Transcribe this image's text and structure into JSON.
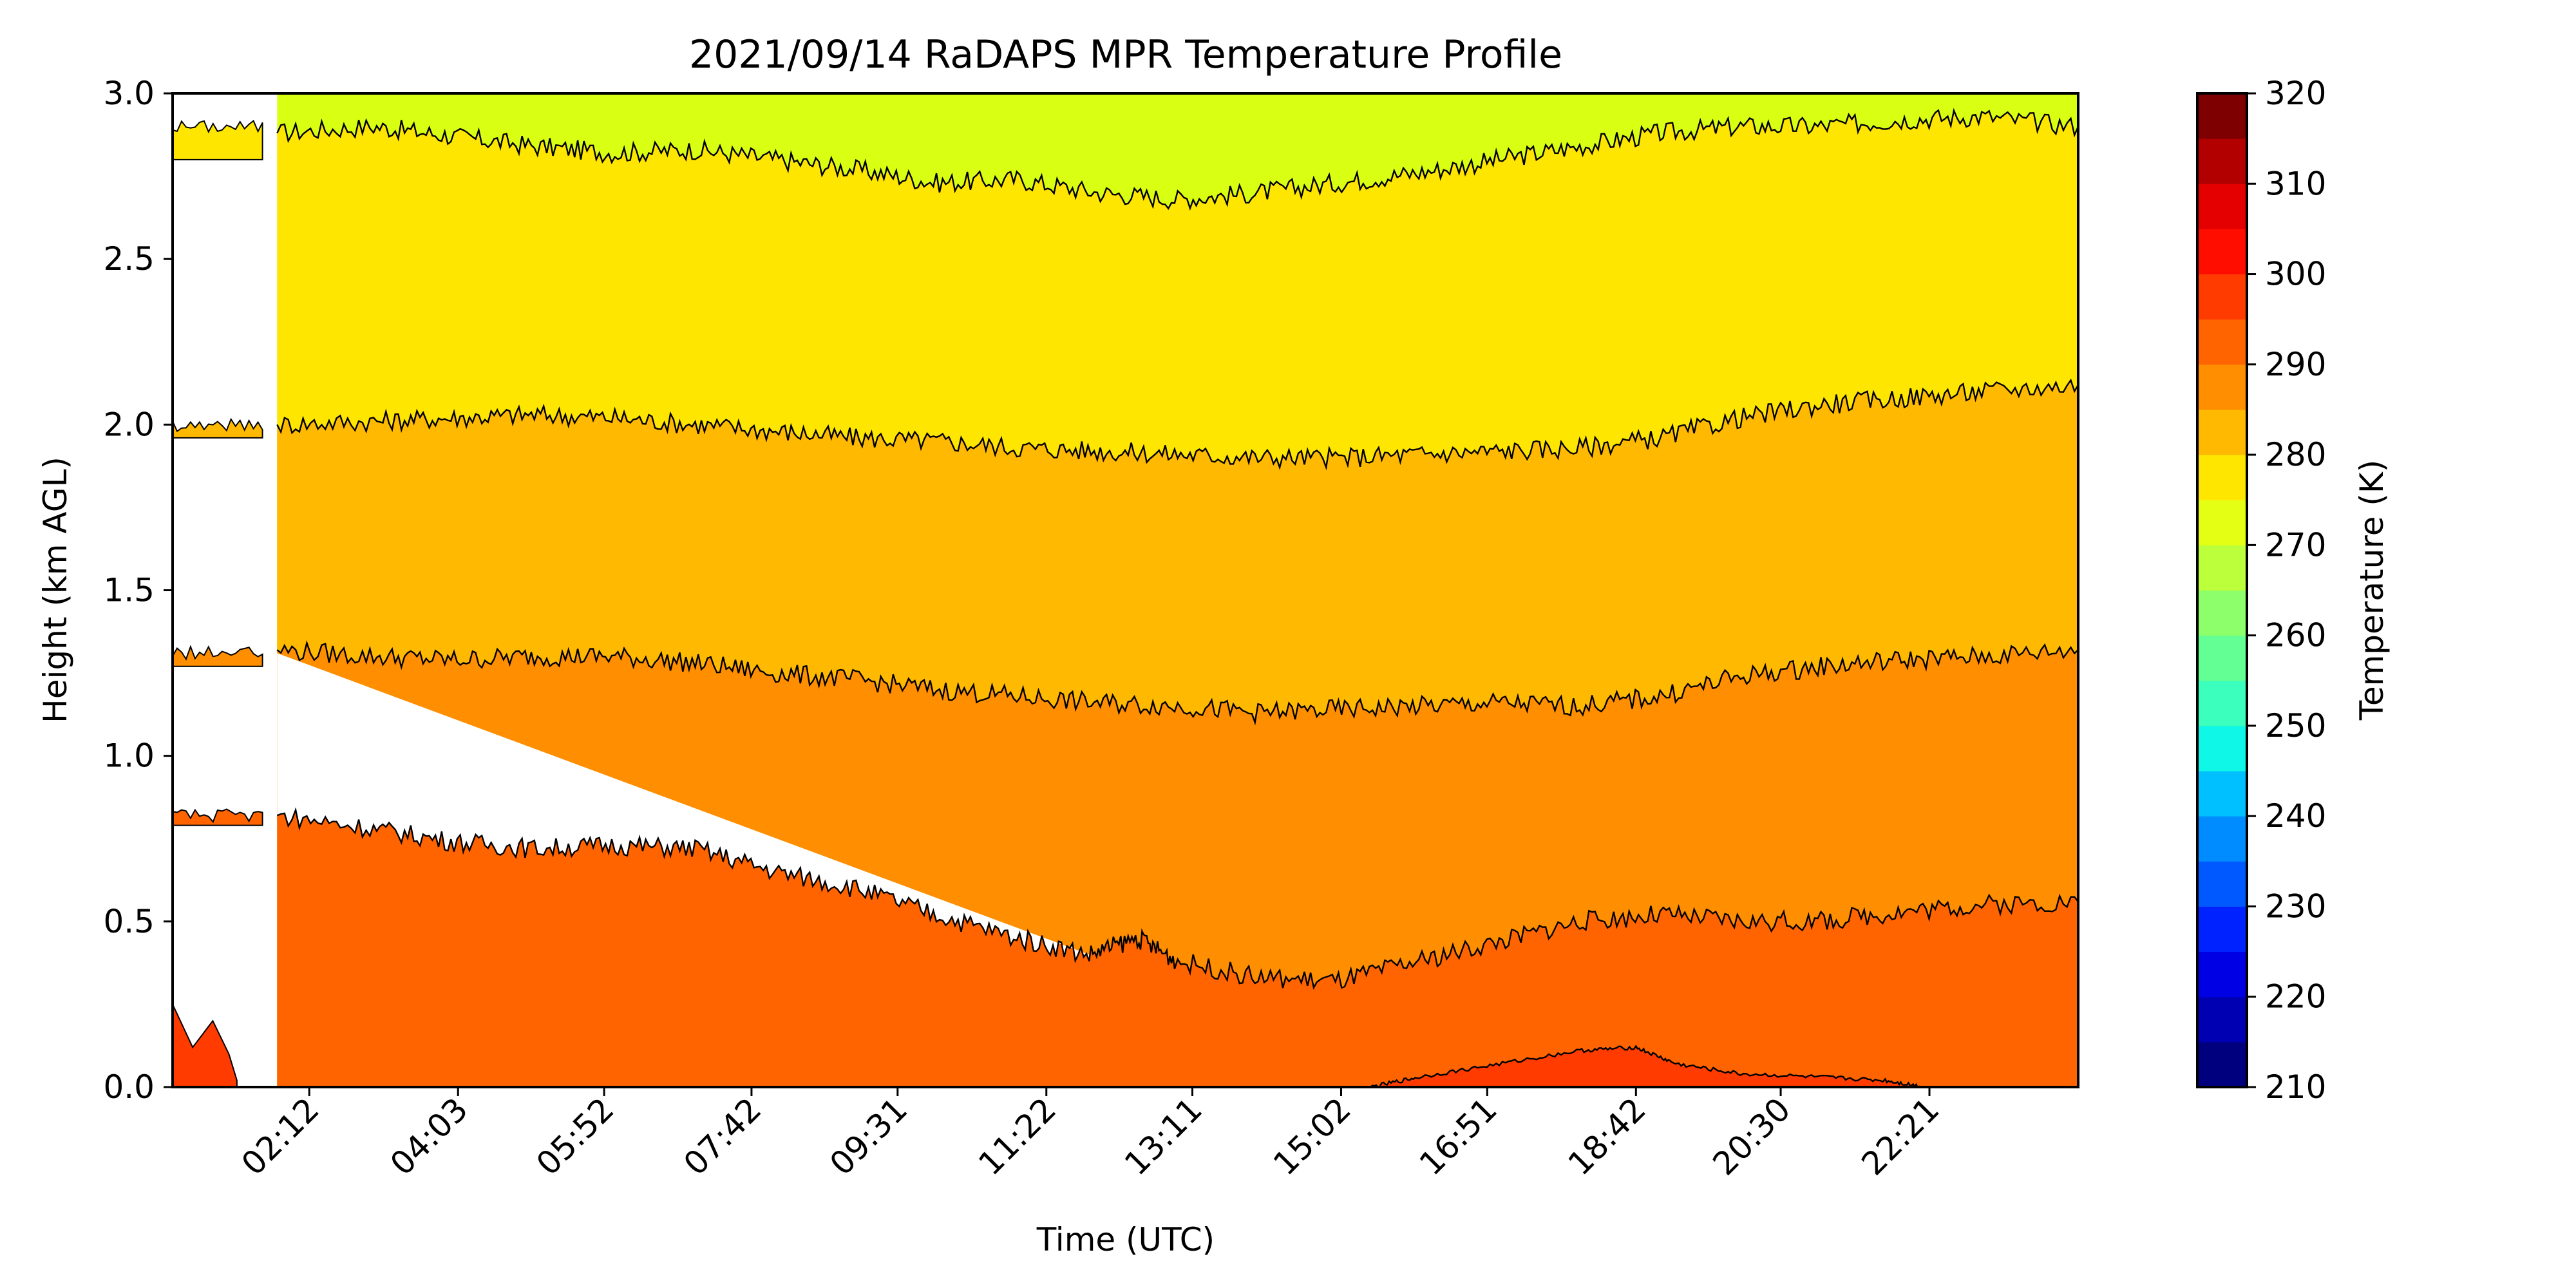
{
  "chart_data": {
    "type": "contourf",
    "title": "2021/09/14 RaDAPS MPR Temperature Profile",
    "xlabel": "Time (UTC)",
    "ylabel": "Height (km AGL)",
    "x_ticks": [
      "02:12",
      "04:03",
      "05:52",
      "07:42",
      "09:31",
      "11:22",
      "13:11",
      "15:02",
      "16:51",
      "18:42",
      "20:30",
      "22:21"
    ],
    "x_tick_hours": [
      2.2,
      4.05,
      5.867,
      7.7,
      9.517,
      11.367,
      13.183,
      15.033,
      16.85,
      18.7,
      20.5,
      22.35
    ],
    "xlim_hours": [
      0.5,
      24.2
    ],
    "data_start_hours": 1.8,
    "ylim": [
      0,
      3
    ],
    "y_ticks": [
      "0.0",
      "0.5",
      "1.0",
      "1.5",
      "2.0",
      "2.5",
      "3.0"
    ],
    "y_tick_values": [
      0,
      0.5,
      1.0,
      1.5,
      2.0,
      2.5,
      3.0
    ],
    "colorbar": {
      "label": "Temperature (K)",
      "range": [
        210,
        320
      ],
      "step": 5,
      "tick_labels": [
        "210",
        "220",
        "230",
        "240",
        "250",
        "260",
        "270",
        "280",
        "290",
        "300",
        "310",
        "320"
      ],
      "tick_values": [
        210,
        220,
        230,
        240,
        250,
        260,
        270,
        280,
        290,
        300,
        310,
        320
      ],
      "colors": [
        "#00007f",
        "#0000b2",
        "#0000e4",
        "#0022ff",
        "#0058ff",
        "#008cff",
        "#00c0ff",
        "#0ff8e7",
        "#3bffbc",
        "#63ff94",
        "#8cff6a",
        "#bcff3b",
        "#e4ff13",
        "#ffe600",
        "#ffb900",
        "#ff8e00",
        "#ff6400",
        "#ff3b00",
        "#ff0e00",
        "#e40000",
        "#b20000",
        "#7f0000"
      ]
    },
    "bands_K": [
      {
        "range": [
          295,
          300
        ],
        "color": "#ff6400"
      },
      {
        "range": [
          290,
          295
        ],
        "color": "#ff8e00"
      },
      {
        "range": [
          285,
          290
        ],
        "color": "#ffb900"
      },
      {
        "range": [
          280,
          285
        ],
        "color": "#ffe600"
      },
      {
        "range": [
          275,
          280
        ],
        "color": "#d9ff13"
      },
      {
        "range": [
          300,
          305
        ],
        "color": "#ff3b00"
      }
    ],
    "contour_levels_km": [
      {
        "isotherm_K": 280,
        "points": [
          [
            1.8,
            2.88
          ],
          [
            3,
            2.9
          ],
          [
            4,
            2.87
          ],
          [
            5,
            2.84
          ],
          [
            6,
            2.82
          ],
          [
            7,
            2.83
          ],
          [
            8,
            2.8
          ],
          [
            9,
            2.77
          ],
          [
            10,
            2.73
          ],
          [
            11,
            2.74
          ],
          [
            12,
            2.7
          ],
          [
            13,
            2.68
          ],
          [
            14,
            2.7
          ],
          [
            15,
            2.73
          ],
          [
            16,
            2.76
          ],
          [
            17,
            2.8
          ],
          [
            18,
            2.84
          ],
          [
            19,
            2.88
          ],
          [
            20,
            2.9
          ],
          [
            21,
            2.9
          ],
          [
            22,
            2.92
          ],
          [
            23,
            2.93
          ],
          [
            24.2,
            2.9
          ]
        ]
      },
      {
        "isotherm_K": 285,
        "points": [
          [
            1.8,
            2.0
          ],
          [
            3,
            2.01
          ],
          [
            4,
            2.02
          ],
          [
            5,
            2.03
          ],
          [
            6,
            2.02
          ],
          [
            7,
            2.0
          ],
          [
            8,
            1.98
          ],
          [
            9,
            1.96
          ],
          [
            10,
            1.95
          ],
          [
            11,
            1.93
          ],
          [
            12,
            1.92
          ],
          [
            13,
            1.91
          ],
          [
            14,
            1.9
          ],
          [
            15,
            1.9
          ],
          [
            16,
            1.91
          ],
          [
            17,
            1.92
          ],
          [
            18,
            1.93
          ],
          [
            19,
            1.96
          ],
          [
            20,
            2.02
          ],
          [
            21,
            2.06
          ],
          [
            22,
            2.08
          ],
          [
            23,
            2.1
          ],
          [
            24.2,
            2.12
          ]
        ]
      },
      {
        "isotherm_K": 290,
        "points": [
          [
            1.8,
            1.32
          ],
          [
            3,
            1.3
          ],
          [
            4,
            1.29
          ],
          [
            5,
            1.3
          ],
          [
            6,
            1.3
          ],
          [
            7,
            1.28
          ],
          [
            8,
            1.25
          ],
          [
            9,
            1.23
          ],
          [
            10,
            1.2
          ],
          [
            11,
            1.18
          ],
          [
            12,
            1.16
          ],
          [
            13,
            1.15
          ],
          [
            14,
            1.13
          ],
          [
            15,
            1.14
          ],
          [
            16,
            1.15
          ],
          [
            17,
            1.16
          ],
          [
            18,
            1.15
          ],
          [
            19,
            1.18
          ],
          [
            20,
            1.24
          ],
          [
            21,
            1.27
          ],
          [
            22,
            1.29
          ],
          [
            23,
            1.3
          ],
          [
            24.2,
            1.32
          ]
        ]
      },
      {
        "isotherm_K": 295,
        "points": [
          [
            1.8,
            0.82
          ],
          [
            3,
            0.78
          ],
          [
            4,
            0.74
          ],
          [
            5,
            0.72
          ],
          [
            6,
            0.73
          ],
          [
            7,
            0.72
          ],
          [
            8,
            0.65
          ],
          [
            9,
            0.6
          ],
          [
            10,
            0.52
          ],
          [
            11,
            0.45
          ],
          [
            11.9,
            0.4
          ],
          [
            12.5,
            0.45
          ],
          [
            13,
            0.38
          ],
          [
            14,
            0.33
          ],
          [
            15,
            0.32
          ],
          [
            16,
            0.38
          ],
          [
            17,
            0.44
          ],
          [
            18,
            0.5
          ],
          [
            19,
            0.52
          ],
          [
            20,
            0.5
          ],
          [
            21,
            0.5
          ],
          [
            22,
            0.53
          ],
          [
            23,
            0.55
          ],
          [
            24.2,
            0.56
          ]
        ]
      },
      {
        "isotherm_K": 300,
        "points": [
          [
            15.4,
            0.0
          ],
          [
            16,
            0.03
          ],
          [
            17,
            0.07
          ],
          [
            18,
            0.11
          ],
          [
            18.7,
            0.12
          ],
          [
            19.2,
            0.07
          ],
          [
            20,
            0.04
          ],
          [
            21,
            0.03
          ],
          [
            21.8,
            0.02
          ],
          [
            22.3,
            0.0
          ]
        ]
      }
    ],
    "missing_wedge": {
      "description_hours_km": [
        [
          1.8,
          0.83
        ],
        [
          1.8,
          1.31
        ],
        [
          11.9,
          0.4
        ]
      ]
    },
    "left_fragments": {
      "hours": [
        0.5,
        1.8
      ]
    }
  }
}
